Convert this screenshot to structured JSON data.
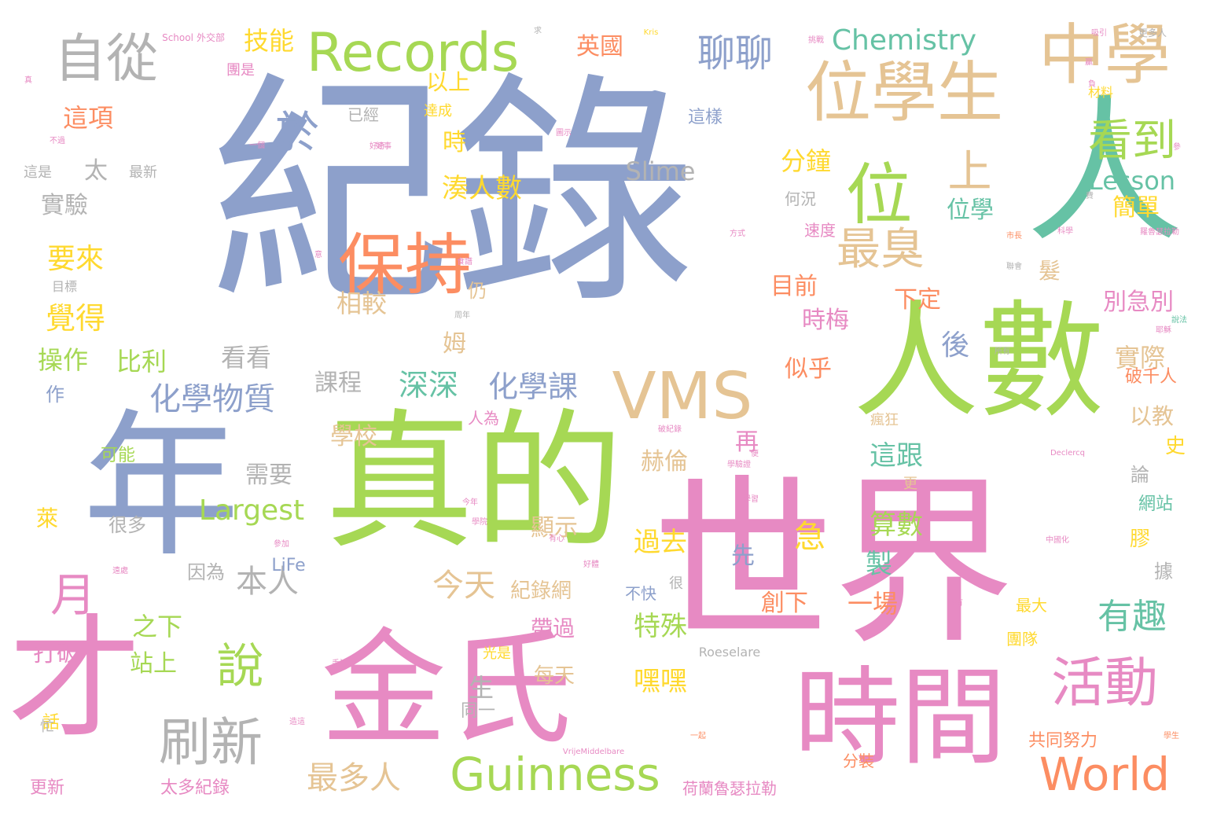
{
  "colors": {
    "blue": "#8da0cb",
    "pink": "#e78ac3",
    "green": "#a6d854",
    "orange": "#fc8d62",
    "tan": "#e5c494",
    "teal": "#66c2a5",
    "yellow": "#ffd92f",
    "grey": "#b3b3b3"
  },
  "words": {
    "w01": "紀錄",
    "w02": "世界",
    "w03": "真的",
    "w04": "金氏",
    "w05": "年",
    "w06": "人數",
    "w07": "人",
    "w08": "時間",
    "w09": "才",
    "w10": "位學生",
    "w11": "中學",
    "w12": "保持",
    "w13": "位",
    "w14": "VMS",
    "w15": "Records",
    "w16": "自從",
    "w17": "活動",
    "w18": "刷新",
    "w19": "說",
    "w20": "看到",
    "w21": "最臭",
    "w22": "上",
    "w23": "Guinness",
    "w24": "World",
    "w25": "月",
    "w26": "於",
    "w27": "聊聊",
    "w28": "Chemistry",
    "w29": "化學物質",
    "w30": "深深",
    "w31": "化學課",
    "w32": "本人",
    "w33": "今天",
    "w34": "最多人",
    "w35": "有趣",
    "w36": "覺得",
    "w37": "要來",
    "w38": "操作",
    "w39": "Largest",
    "w40": "湊人數",
    "w41": "技能",
    "w42": "英國",
    "w43": "這項",
    "w44": "太",
    "w45": "實驗",
    "w46": "後",
    "w47": "特殊",
    "w48": "嘿嘿",
    "w49": "分鐘",
    "w50": "Slime",
    "w51": "Lesson",
    "w52": "簡單",
    "w53": "相較",
    "w54": "以上",
    "w55": "課程",
    "w56": "比利",
    "w57": "看看",
    "w58": "學校",
    "w59": "需要",
    "w60": "這跟",
    "w61": "算數",
    "w62": "過去",
    "w63": "紀錄網",
    "w64": "一場",
    "w65": "創下",
    "w66": "急",
    "w67": "之下",
    "w68": "站上",
    "w69": "打破",
    "w70": "位學",
    "w71": "時梅",
    "w72": "似乎",
    "w73": "目前",
    "w74": "下定",
    "w75": "實際",
    "w76": "以教",
    "w77": "別急別",
    "w78": "赫倫",
    "w79": "顯示",
    "w80": "再",
    "w81": "先",
    "w82": "製",
    "w83": "帶過",
    "w84": "每天",
    "w85": "生",
    "w86": "同一",
    "w87": "萊",
    "w88": "時",
    "w89": "髮",
    "w90": "姆",
    "w91": "仍",
    "w92": "破千人",
    "w93": "史",
    "w94": "論",
    "w95": "網站",
    "w96": "膠",
    "w97": "據",
    "w98": "最大",
    "w99": "團隊",
    "w100": "共同努力",
    "w101": "分裝",
    "w102": "荷蘭魯瑟拉勒",
    "w103": "太多紀錄",
    "w104": "更新",
    "w105": "LiFe",
    "w106": "因為",
    "w107": "很多",
    "w108": "可能",
    "w109": "作",
    "w110": "Roeselare",
    "w111": "不快",
    "w112": "很",
    "w113": "光是",
    "w114": "人為",
    "w115": "速度",
    "w116": "何況",
    "w117": "這樣",
    "w118": "已經",
    "w119": "達成",
    "w120": "團是",
    "w121": "最新",
    "w122": "這是",
    "w123": "目標",
    "w124": "材料",
    "w125": "更多人",
    "w126": "School",
    "w127": "外交部",
    "w128": "Kris",
    "w129": "瘋狂",
    "w130": "更",
    "w131": "Declercq",
    "w132": "VrijeMiddelbare",
    "w133": "中國化",
    "w134": "共有",
    "w135": "一起",
    "w136": "學生",
    "w137": "有心",
    "w138": "參加",
    "w139": "好事",
    "w140": "今年",
    "w141": "學院",
    "w142": "遠處",
    "w143": "聯會",
    "w144": "市長",
    "w145": "科學",
    "w146": "方式",
    "w147": "周年",
    "w148": "說法",
    "w149": "吸引",
    "w150": "贏",
    "w151": "圖示",
    "w152": "一個",
    "w153": "不過",
    "w154": "好奇",
    "w155": "負",
    "w156": "求",
    "w157": "挑戰",
    "w158": "費",
    "w159": "參",
    "w160": "真",
    "w161": "破紀錄",
    "w162": "學驗證",
    "w163": "手法",
    "w164": "話",
    "w165": "忙",
    "w166": "造這",
    "w167": "羅魯瑟拉勒",
    "w168": "耶穌",
    "w169": "所有",
    "w170": "意",
    "w171": "食譜",
    "w172": "便",
    "w173": "學習",
    "w174": "好體"
  }
}
